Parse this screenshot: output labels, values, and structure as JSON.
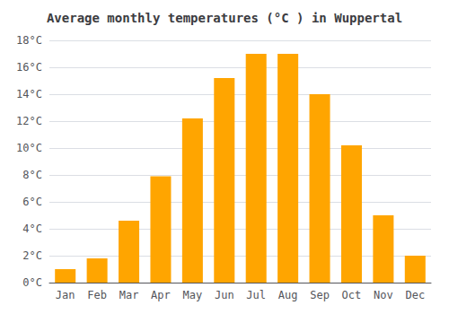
{
  "chart_data": {
    "type": "bar",
    "title": "Average monthly temperatures (°C ) in Wuppertal",
    "categories": [
      "Jan",
      "Feb",
      "Mar",
      "Apr",
      "May",
      "Jun",
      "Jul",
      "Aug",
      "Sep",
      "Oct",
      "Nov",
      "Dec"
    ],
    "values": [
      1.0,
      1.8,
      4.6,
      7.9,
      12.2,
      15.2,
      17.0,
      17.0,
      14.0,
      10.2,
      5.0,
      2.0
    ],
    "color": "#FFA500",
    "ylim": [
      0,
      18
    ],
    "yticks": [
      {
        "value": 0,
        "label": "0°C"
      },
      {
        "value": 2,
        "label": "2°C"
      },
      {
        "value": 4,
        "label": "4°C"
      },
      {
        "value": 6,
        "label": "6°C"
      },
      {
        "value": 8,
        "label": "8°C"
      },
      {
        "value": 10,
        "label": "10°C"
      },
      {
        "value": 12,
        "label": "12°C"
      },
      {
        "value": 14,
        "label": "14°C"
      },
      {
        "value": 16,
        "label": "16°C"
      },
      {
        "value": 18,
        "label": "18°C"
      }
    ],
    "grid": true
  }
}
